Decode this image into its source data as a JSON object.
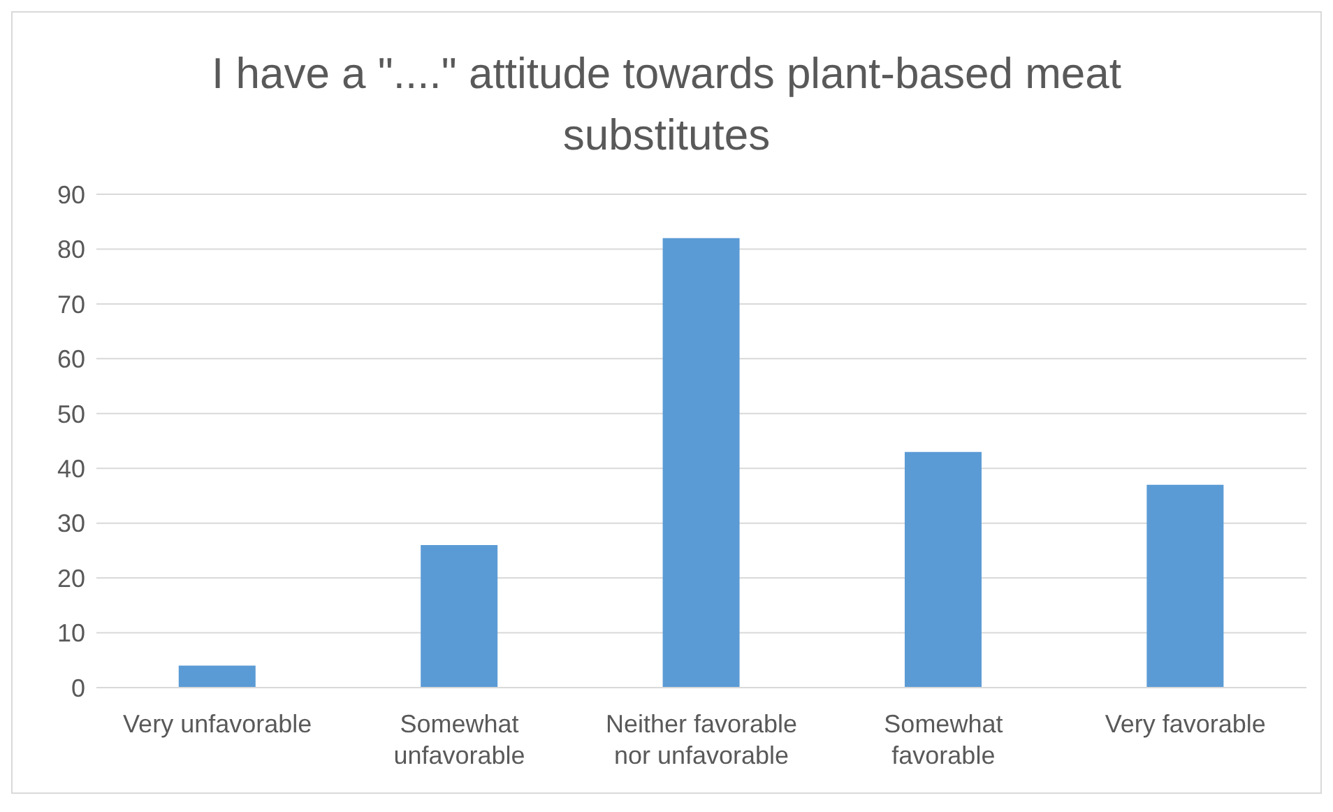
{
  "chart_data": {
    "type": "bar",
    "title": "I have a \"....\" attitude towards plant-based meat substitutes",
    "categories": [
      "Very unfavorable",
      "Somewhat unfavorable",
      "Neither favorable nor unfavorable",
      "Somewhat favorable",
      "Very favorable"
    ],
    "values": [
      4,
      26,
      82,
      43,
      37
    ],
    "color": "#5b9bd5",
    "ylim": [
      0,
      90
    ],
    "yticks": [
      0,
      10,
      20,
      30,
      40,
      50,
      60,
      70,
      80,
      90
    ],
    "grid": "y"
  }
}
